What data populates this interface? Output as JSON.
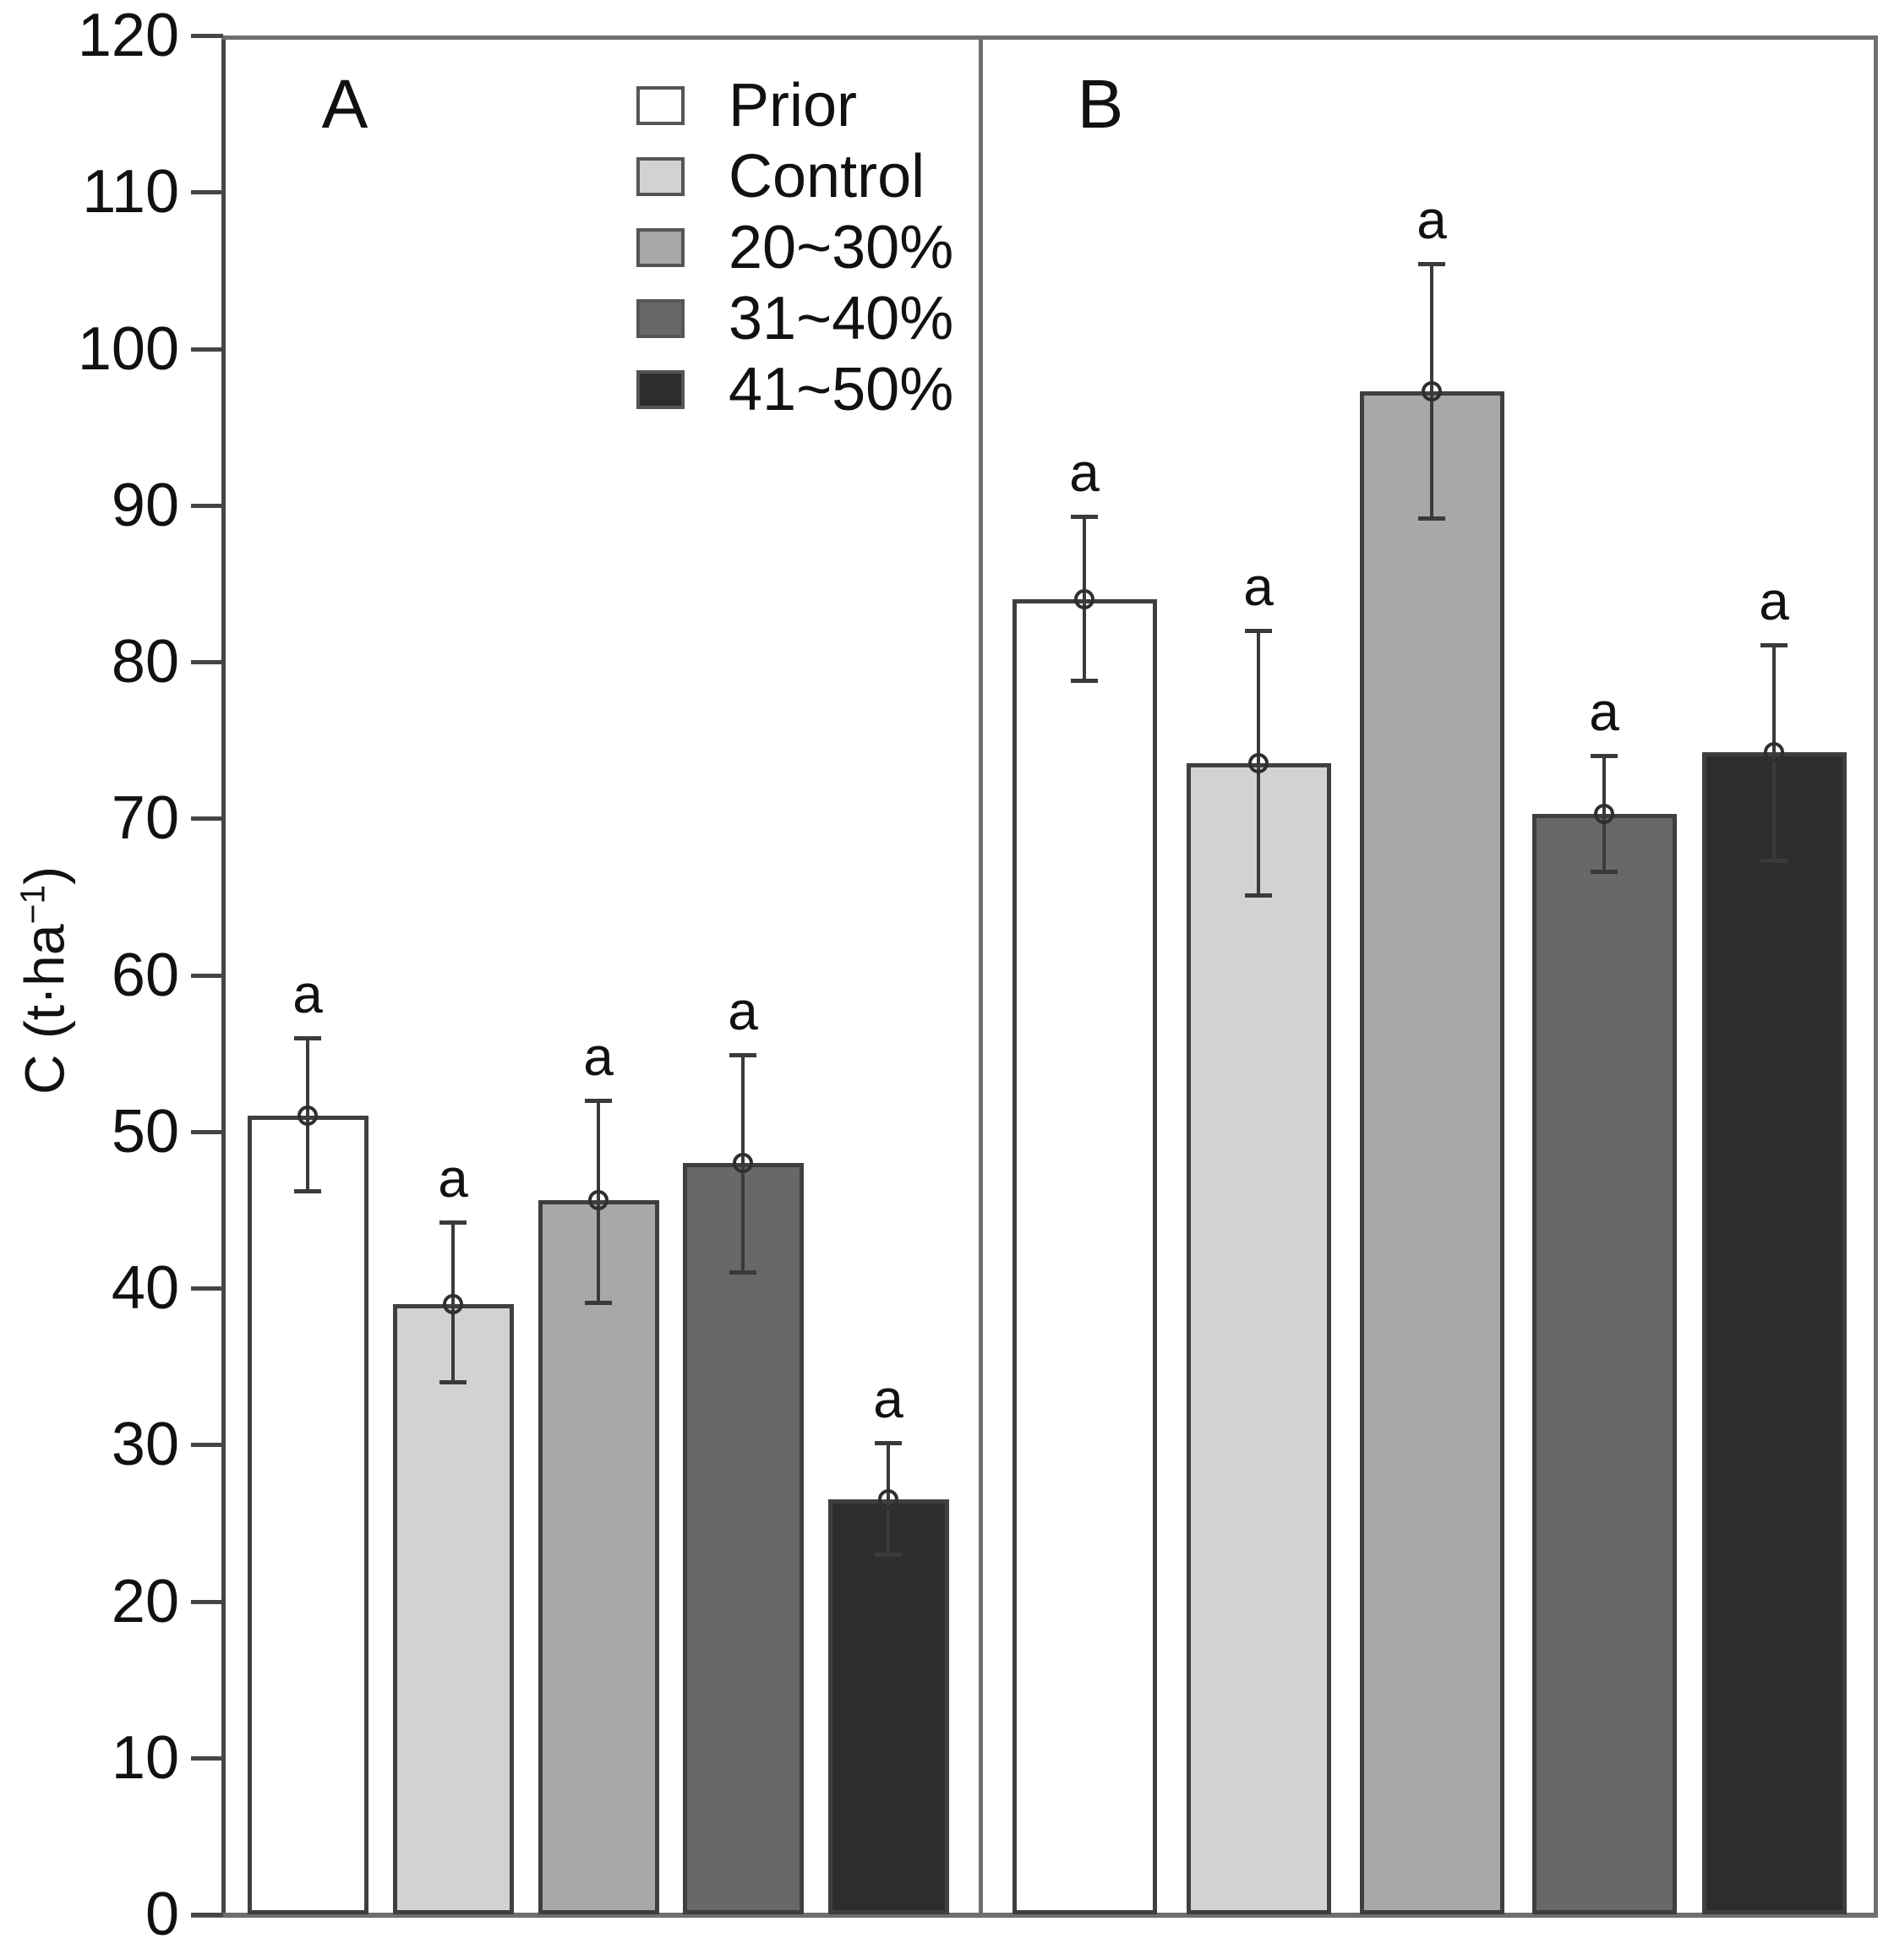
{
  "figure": {
    "panel_a_label": "A",
    "panel_b_label": "B",
    "ylabel_main": "C (t·ha",
    "ylabel_sup": "−1",
    "ylabel_end": ")"
  },
  "legend": {
    "items": [
      {
        "label": "Prior",
        "color": "#ffffff"
      },
      {
        "label": "Control",
        "color": "#d2d2d2"
      },
      {
        "label": "20~30%",
        "color": "#a8a8a8"
      },
      {
        "label": "31~40%",
        "color": "#686868"
      },
      {
        "label": "41~50%",
        "color": "#2d2d2d"
      }
    ]
  },
  "chart_data": {
    "type": "bar",
    "title": "",
    "xlabel": "",
    "ylabel": "C (t·ha⁻¹)",
    "ylim": [
      0,
      120
    ],
    "yticks": [
      0,
      10,
      20,
      30,
      40,
      50,
      60,
      70,
      80,
      90,
      100,
      110,
      120
    ],
    "grid": false,
    "legend_position": "upper-left-inside",
    "error_bars": true,
    "marker": "open-circle",
    "categories": [
      "Prior",
      "Control",
      "20~30%",
      "31~40%",
      "41~50%"
    ],
    "bar_colors": [
      "#ffffff",
      "#d2d2d2",
      "#a8a8a8",
      "#686868",
      "#2d2d2d"
    ],
    "bar_border_color": "#3f3f3f",
    "error_color": "#3a3a3a",
    "panels": [
      {
        "label": "A",
        "bars": [
          {
            "category": "Prior",
            "value": 51.0,
            "lower": 46.2,
            "upper": 56.0,
            "sig": "a"
          },
          {
            "category": "Control",
            "value": 39.0,
            "lower": 34.0,
            "upper": 44.2,
            "sig": "a"
          },
          {
            "category": "20~30%",
            "value": 45.6,
            "lower": 39.1,
            "upper": 52.0,
            "sig": "a"
          },
          {
            "category": "31~40%",
            "value": 48.0,
            "lower": 41.0,
            "upper": 54.9,
            "sig": "a"
          },
          {
            "category": "41~50%",
            "value": 26.5,
            "lower": 23.0,
            "upper": 30.1,
            "sig": "a"
          }
        ]
      },
      {
        "label": "B",
        "bars": [
          {
            "category": "Prior",
            "value": 84.0,
            "lower": 78.8,
            "upper": 89.3,
            "sig": "a"
          },
          {
            "category": "Control",
            "value": 73.5,
            "lower": 65.1,
            "upper": 82.0,
            "sig": "a"
          },
          {
            "category": "20~30%",
            "value": 97.3,
            "lower": 89.2,
            "upper": 105.4,
            "sig": "a"
          },
          {
            "category": "31~40%",
            "value": 70.3,
            "lower": 66.6,
            "upper": 74.0,
            "sig": "a"
          },
          {
            "category": "41~50%",
            "value": 74.2,
            "lower": 67.3,
            "upper": 81.1,
            "sig": "a"
          }
        ]
      }
    ]
  }
}
